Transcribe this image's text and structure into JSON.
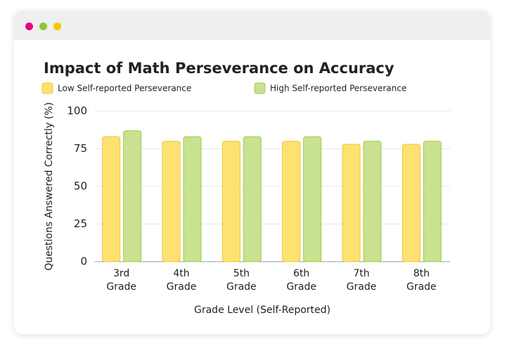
{
  "chart_data": {
    "type": "bar",
    "title": "Impact of Math Perseverance on Accuracy",
    "x_label": "Grade Level (Self-Reported)",
    "y_label": "Questions Answered Correctly (%)",
    "categories": [
      "3rd Grade",
      "4th Grade",
      "5th Grade",
      "6th Grade",
      "7th Grade",
      "8th Grade"
    ],
    "series": [
      {
        "name": "Low Self-reported Perseverance",
        "color": "#fde272",
        "values": [
          83,
          80,
          80,
          80,
          78,
          78
        ]
      },
      {
        "name": "High Self-reported Perseverance",
        "color": "#c9e290",
        "values": [
          87,
          83,
          83,
          83,
          80,
          80
        ]
      }
    ],
    "ylim": [
      0,
      100
    ],
    "yticks": [
      0,
      25,
      50,
      75,
      100
    ],
    "grid": true
  }
}
